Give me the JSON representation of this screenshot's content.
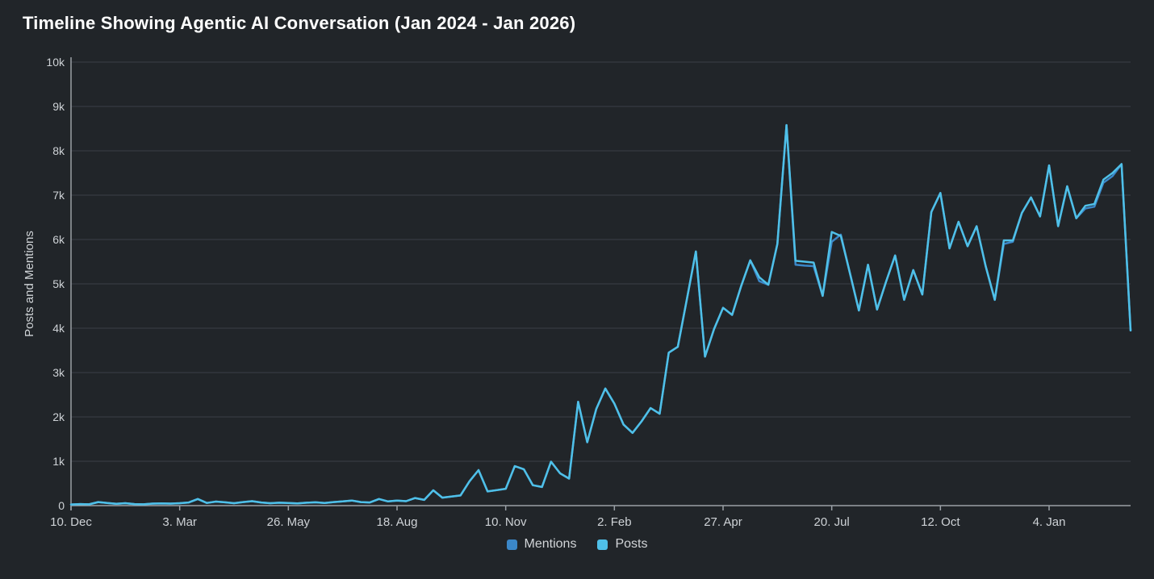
{
  "title": "Timeline Showing Agentic AI Conversation (Jan 2024 - Jan 2026)",
  "colors": {
    "background": "#212529",
    "grid": "#3b4046",
    "axis": "#9aa0a6",
    "title_text": "#ffffff",
    "tick_text": "#ced2d6",
    "legend_text": "#d2d5d8",
    "mentions_blue": "#3b87c8",
    "posts_blue": "#4fc0e8"
  },
  "chart_data": {
    "type": "line",
    "title": "Timeline Showing Agentic AI Conversation (Jan 2024 - Jan 2026)",
    "xlabel": "",
    "ylabel": "Posts and Mentions",
    "ylim": [
      0,
      10000
    ],
    "grid": true,
    "legend_position": "bottom-center",
    "x_interval": "weekly",
    "y_tick_labels": [
      "0",
      "1k",
      "2k",
      "3k",
      "4k",
      "5k",
      "6k",
      "7k",
      "8k",
      "9k",
      "10k"
    ],
    "x_tick_labels": [
      "10. Dec",
      "3. Mar",
      "26. May",
      "18. Aug",
      "10. Nov",
      "2. Feb",
      "27. Apr",
      "20. Jul",
      "12. Oct",
      "4. Jan"
    ],
    "x_tick_positions": [
      0,
      12,
      24,
      36,
      48,
      60,
      72,
      84,
      96,
      108
    ],
    "series": [
      {
        "name": "Mentions",
        "color": "#3b87c8",
        "values": [
          25,
          35,
          30,
          80,
          60,
          40,
          55,
          35,
          30,
          45,
          50,
          45,
          55,
          70,
          150,
          60,
          90,
          75,
          55,
          80,
          100,
          70,
          55,
          65,
          60,
          50,
          65,
          75,
          60,
          80,
          95,
          115,
          80,
          70,
          150,
          95,
          115,
          100,
          170,
          130,
          345,
          180,
          205,
          230,
          550,
          800,
          320,
          350,
          380,
          890,
          820,
          460,
          420,
          990,
          730,
          610,
          2340,
          1430,
          2180,
          2640,
          2300,
          1830,
          1640,
          1900,
          2200,
          2070,
          3450,
          3580,
          4650,
          5730,
          3360,
          3980,
          4460,
          4300,
          4950,
          5530,
          5060,
          4980,
          5900,
          8580,
          5430,
          5410,
          5400,
          4730,
          5950,
          6110,
          5250,
          4400,
          5430,
          4420,
          5050,
          5640,
          4640,
          5310,
          4760,
          6620,
          7050,
          5800,
          6400,
          5850,
          6300,
          5400,
          4640,
          5900,
          5950,
          6600,
          6950,
          6520,
          7670,
          6300,
          7200,
          6480,
          6700,
          6740,
          7280,
          7430,
          7700,
          3950
        ]
      },
      {
        "name": "Posts",
        "color": "#4fc0e8",
        "values": [
          25,
          35,
          30,
          80,
          60,
          40,
          55,
          35,
          30,
          45,
          50,
          45,
          55,
          70,
          150,
          60,
          90,
          75,
          55,
          80,
          100,
          70,
          55,
          65,
          60,
          50,
          65,
          75,
          60,
          80,
          95,
          115,
          80,
          70,
          150,
          95,
          115,
          100,
          170,
          130,
          345,
          180,
          205,
          230,
          550,
          800,
          320,
          350,
          380,
          890,
          820,
          460,
          420,
          990,
          730,
          610,
          2340,
          1430,
          2180,
          2640,
          2300,
          1830,
          1640,
          1900,
          2200,
          2070,
          3450,
          3580,
          4650,
          5730,
          3360,
          3980,
          4460,
          4300,
          4950,
          5530,
          5150,
          4980,
          5900,
          8580,
          5520,
          5500,
          5480,
          4730,
          6170,
          6080,
          5250,
          4400,
          5430,
          4420,
          5050,
          5640,
          4640,
          5310,
          4760,
          6620,
          7050,
          5800,
          6400,
          5850,
          6300,
          5400,
          4640,
          5980,
          5980,
          6600,
          6950,
          6520,
          7670,
          6300,
          7200,
          6480,
          6760,
          6800,
          7350,
          7500,
          7700,
          3950
        ]
      }
    ]
  },
  "legend": {
    "items": [
      {
        "label": "Mentions",
        "color": "#3b87c8"
      },
      {
        "label": "Posts",
        "color": "#4fc0e8"
      }
    ]
  }
}
